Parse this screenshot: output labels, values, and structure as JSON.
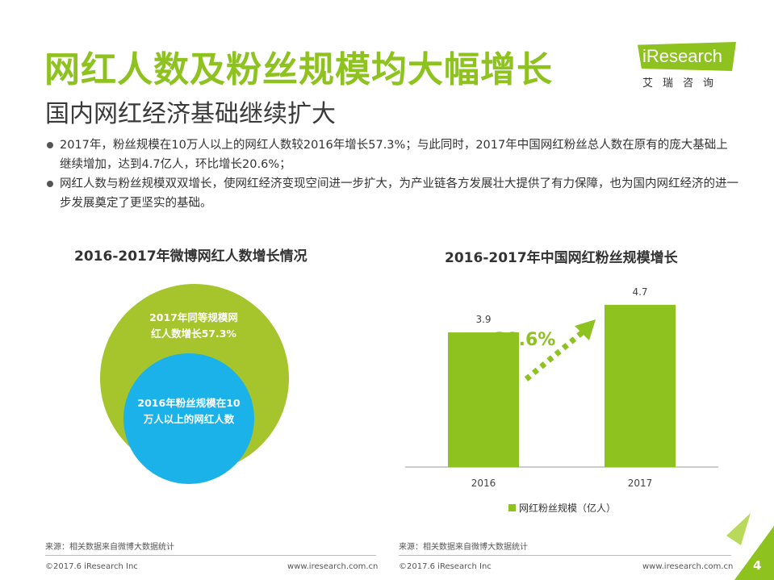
{
  "title": "网红人数及粉丝规模均大幅增长",
  "subtitle": "国内网红经济基础继续扩大",
  "logo": {
    "text": "iResearch",
    "cn": "艾瑞咨询"
  },
  "bullets": [
    "2017年，粉丝规模在10万人以上的网红人数较2016年增长57.3%；与此同时，2017年中国网红粉丝总人数在原有的庞大基础上继续增加，达到4.7亿人，环比增长20.6%；",
    "网红人数与粉丝规模双双增长，使网红经济变现空间进一步扩大，为产业链各方发展壮大提供了有力保障，也为国内网红经济的进一步发展奠定了更坚实的基础。"
  ],
  "left_chart": {
    "title": "2016-2017年微博网红人数增长情况",
    "outer_label": "2017年同等规模网红人数增长57.3%",
    "inner_label": "2016年粉丝规模在10万人以上的网红人数"
  },
  "chart_data": {
    "type": "bar",
    "title": "2016-2017年中国网红粉丝规模增长",
    "categories": [
      "2016",
      "2017"
    ],
    "series": [
      {
        "name": "网红粉丝规模（亿人）",
        "values": [
          3.9,
          4.7
        ]
      }
    ],
    "annotation": "20.6%",
    "ylim": [
      0,
      5.0
    ],
    "legend": "bottom"
  },
  "sources": {
    "left": "来源：相关数据来自微博大数据统计",
    "right": "来源：相关数据来自微博大数据统计"
  },
  "footer": {
    "copyright_left": "©2017.6 iResearch Inc",
    "url_left": "www.iresearch.com.cn",
    "copyright_right": "©2017.6 iResearch Inc",
    "url_right": "www.iresearch.com.cn",
    "page": "4"
  },
  "colors": {
    "accent": "#8dc21f",
    "bar": "#8dc21f",
    "inner_circle": "#1ab2e8",
    "outer_circle": "#a6c52c"
  }
}
